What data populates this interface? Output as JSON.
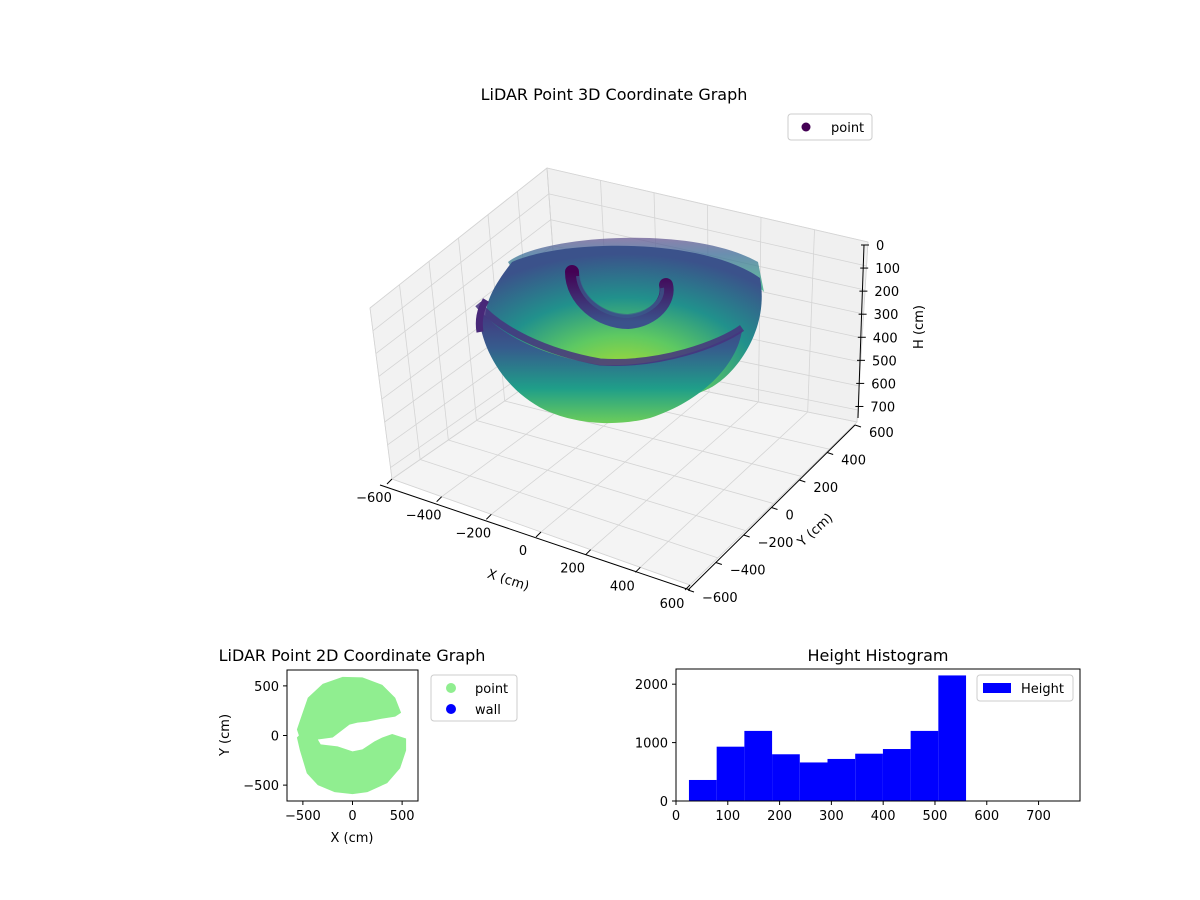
{
  "figure": {
    "background": "#ffffff"
  },
  "chart_data": [
    {
      "type": "scatter3d",
      "title": "LiDAR Point 3D Coordinate Graph",
      "xlabel": "X (cm)",
      "ylabel": "Y (cm)",
      "zlabel": "H (cm)",
      "xticks": [
        -600,
        -400,
        -200,
        0,
        200,
        400,
        600
      ],
      "yticks": [
        -600,
        -400,
        -200,
        0,
        200,
        400,
        600
      ],
      "zticks": [
        0,
        100,
        200,
        300,
        400,
        500,
        600,
        700
      ],
      "xlim": [
        -600,
        600
      ],
      "ylim": [
        -600,
        600
      ],
      "zlim": [
        750,
        0
      ],
      "z_axis_inverted": true,
      "colormap": "viridis",
      "colormap_stops": [
        "#440154",
        "#3b528b",
        "#21918c",
        "#5ec962",
        "#fde725"
      ],
      "legend": {
        "entries": [
          "point"
        ],
        "marker_color": "#440154",
        "placement": "top-right"
      },
      "shape": "hemispherical bowl of points, radius ~570 cm, depth ~550 cm, with an inner partial ring and a gap wedge on the +Y side",
      "bowl_radius": 570,
      "bowl_depth": 550
    },
    {
      "type": "scatter",
      "title": "LiDAR Point 2D Coordinate Graph",
      "xlabel": "X (cm)",
      "ylabel": "Y (cm)",
      "xticks": [
        -500,
        0,
        500
      ],
      "yticks": [
        -500,
        0,
        500
      ],
      "xlim": [
        -660,
        660
      ],
      "ylim": [
        -660,
        660
      ],
      "outline": [
        [
          -530,
          150
        ],
        [
          -450,
          380
        ],
        [
          -300,
          520
        ],
        [
          -100,
          590
        ],
        [
          100,
          585
        ],
        [
          300,
          510
        ],
        [
          430,
          380
        ],
        [
          490,
          230
        ],
        [
          430,
          190
        ],
        [
          300,
          170
        ],
        [
          150,
          140
        ],
        [
          50,
          130
        ],
        [
          -30,
          110
        ],
        [
          -200,
          -20
        ],
        [
          -350,
          -40
        ],
        [
          -320,
          -90
        ],
        [
          -150,
          -110
        ],
        [
          0,
          -160
        ],
        [
          100,
          -140
        ],
        [
          220,
          -60
        ],
        [
          300,
          -20
        ],
        [
          400,
          15
        ],
        [
          540,
          -30
        ],
        [
          540,
          -150
        ],
        [
          480,
          -330
        ],
        [
          350,
          -480
        ],
        [
          150,
          -570
        ],
        [
          0,
          -590
        ],
        [
          -180,
          -570
        ],
        [
          -350,
          -500
        ],
        [
          -460,
          -380
        ],
        [
          -530,
          -150
        ],
        [
          -560,
          -20
        ],
        [
          -540,
          0
        ],
        [
          -560,
          60
        ]
      ],
      "series": [
        {
          "name": "point",
          "color": "#90ee90"
        },
        {
          "name": "wall",
          "color": "#0000ff"
        }
      ],
      "legend": {
        "placement": "outside-right"
      }
    },
    {
      "type": "bar",
      "title": "Height Histogram",
      "xlabel": "",
      "ylabel": "",
      "xticks": [
        0,
        100,
        200,
        300,
        400,
        500,
        600,
        700
      ],
      "yticks": [
        0,
        1000,
        2000
      ],
      "xlim": [
        0,
        780
      ],
      "ylim": [
        0,
        2260
      ],
      "bin_edges": [
        25,
        78.5,
        132,
        185.5,
        239,
        292.5,
        346,
        399.5,
        453,
        506.5,
        560
      ],
      "values": [
        360,
        930,
        1200,
        800,
        660,
        720,
        810,
        890,
        1200,
        2150
      ],
      "series_name": "Height",
      "color": "#0000ff",
      "legend": {
        "placement": "top-right"
      }
    }
  ]
}
